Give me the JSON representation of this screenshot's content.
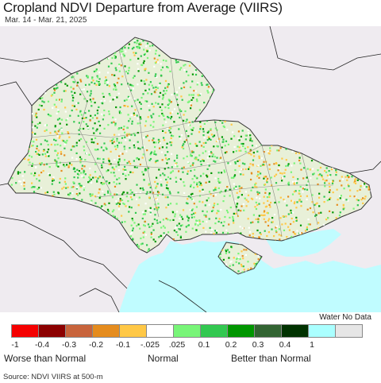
{
  "title": "Cropland NDVI Departure from Average (VIIRS)",
  "subtitle": "Mar. 14 - Mar. 21, 2025",
  "legend": {
    "nodata_label": "Water No Data",
    "colors": [
      "#f50000",
      "#8c0000",
      "#c8643c",
      "#e58c1e",
      "#ffc846",
      "#ffffff",
      "#78f578",
      "#32c850",
      "#009600",
      "#326432",
      "#003200",
      "#aaffff",
      "#e6e6e6"
    ],
    "ticks": [
      "-1",
      "-0.4",
      "-0.3",
      "-0.2",
      "-0.1",
      "-.025",
      ".025",
      "0.1",
      "0.2",
      "0.3",
      "0.4",
      "1"
    ],
    "categories": {
      "worse": "Worse than Normal",
      "normal": "Normal",
      "better": "Better than Normal"
    }
  },
  "map": {
    "land_color": "#efebf0",
    "sea_color": "#c0fcff",
    "crop_colors": [
      "#78f578",
      "#32c850",
      "#009600",
      "#ffc846",
      "#e58c1e",
      "#ffffff"
    ]
  },
  "source": "Source: NDVI VIIRS at 500-m"
}
